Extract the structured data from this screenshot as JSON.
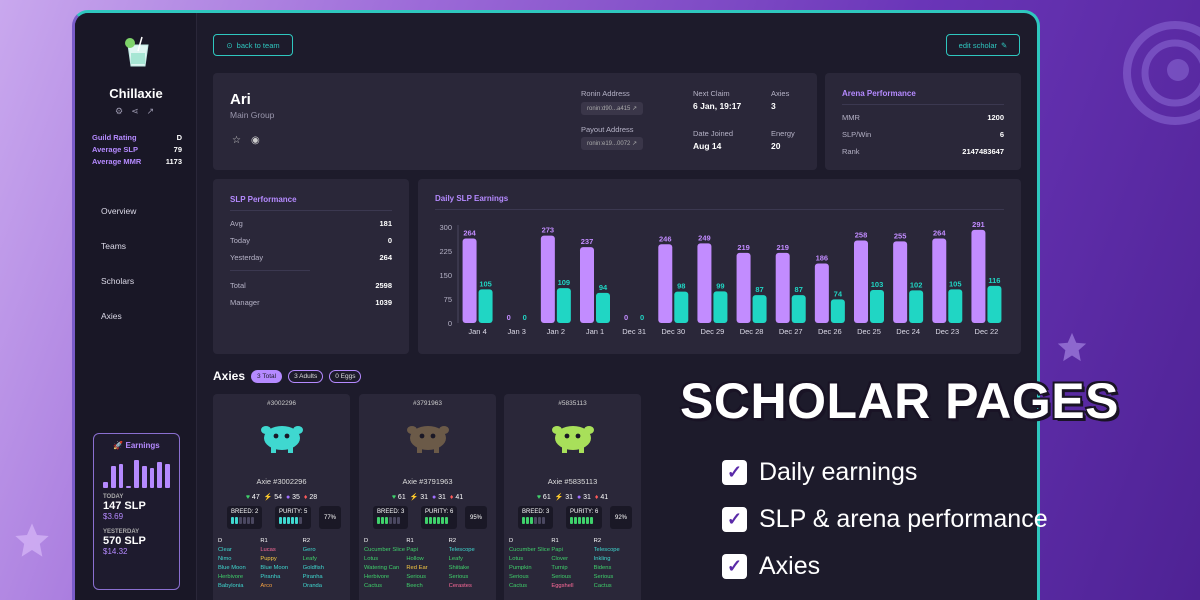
{
  "sidebar": {
    "guild_name": "Chillaxie",
    "stats": [
      {
        "label": "Guild Rating",
        "value": "D"
      },
      {
        "label": "Average SLP",
        "value": "79"
      },
      {
        "label": "Average MMR",
        "value": "1173"
      }
    ],
    "nav": [
      "Overview",
      "Teams",
      "Scholars",
      "Axies"
    ],
    "earnings": {
      "title": "Earnings",
      "today_label": "TODAY",
      "today_slp": "147 SLP",
      "today_usd": "$3.69",
      "yesterday_label": "YESTERDAY",
      "yesterday_slp": "570 SLP",
      "yesterday_usd": "$14.32",
      "mini_bars": [
        6,
        22,
        24,
        2,
        28,
        22,
        20,
        26,
        24
      ]
    }
  },
  "toolbar": {
    "back_label": "back to team",
    "edit_label": "edit scholar"
  },
  "profile": {
    "name": "Ari",
    "group": "Main Group",
    "ronin_label": "Ronin Address",
    "ronin_value": "ronin:d90...a415",
    "payout_label": "Payout Address",
    "payout_value": "ronin:e19...0072",
    "next_claim_label": "Next Claim",
    "next_claim_value": "6 Jan, 19:17",
    "date_joined_label": "Date Joined",
    "date_joined_value": "Aug 14",
    "axies_label": "Axies",
    "axies_value": "3",
    "energy_label": "Energy",
    "energy_value": "20"
  },
  "arena": {
    "title": "Arena Performance",
    "rows": [
      {
        "label": "MMR",
        "value": "1200"
      },
      {
        "label": "SLP/Win",
        "value": "6"
      },
      {
        "label": "Rank",
        "value": "2147483647"
      }
    ]
  },
  "slp_performance": {
    "title": "SLP Performance",
    "rows_top": [
      {
        "label": "Avg",
        "value": "181"
      },
      {
        "label": "Today",
        "value": "0"
      },
      {
        "label": "Yesterday",
        "value": "264"
      }
    ],
    "rows_bottom": [
      {
        "label": "Total",
        "value": "2598"
      },
      {
        "label": "Manager",
        "value": "1039"
      }
    ]
  },
  "chart_data": {
    "type": "bar",
    "title": "Daily SLP Earnings",
    "categories": [
      "Jan 4",
      "Jan 3",
      "Jan 2",
      "Jan 1",
      "Dec 31",
      "Dec 30",
      "Dec 29",
      "Dec 28",
      "Dec 27",
      "Dec 26",
      "Dec 25",
      "Dec 24",
      "Dec 23",
      "Dec 22"
    ],
    "series": [
      {
        "values": [
          264,
          0,
          273,
          237,
          0,
          246,
          249,
          219,
          219,
          186,
          258,
          255,
          264,
          291
        ],
        "color": "#c28cff"
      },
      {
        "values": [
          105,
          0,
          109,
          94,
          0,
          98,
          99,
          87,
          87,
          74,
          103,
          102,
          105,
          116
        ],
        "color": "#20d6c4"
      }
    ],
    "yticks": [
      0,
      75,
      150,
      225,
      300
    ],
    "ylim": [
      0,
      300
    ]
  },
  "axies": {
    "title": "Axies",
    "chips": [
      "3 Total",
      "3 Adults",
      "0 Eggs"
    ],
    "table_headers": [
      "D",
      "R1",
      "R2"
    ],
    "cards": [
      {
        "id": "#3002296",
        "name": "Axie #3002296",
        "color": "#3fd8d0",
        "hp": "47",
        "speed": "54",
        "skill": "35",
        "morale": "28",
        "breed": "BREED: 2",
        "purity": "PURITY: 5",
        "pct": "77%",
        "breed_count": 2,
        "purity_count": 5,
        "seg_color": "#3fd8d0",
        "rows": [
          [
            {
              "t": "Clear",
              "c": "#3fd8d0"
            },
            {
              "t": "Lucas",
              "c": "#ff6b9a"
            },
            {
              "t": "Gero",
              "c": "#3fd8d0"
            }
          ],
          [
            {
              "t": "Nimo",
              "c": "#3fd8d0"
            },
            {
              "t": "Puppy",
              "c": "#f5c842"
            },
            {
              "t": "Leafy",
              "c": "#3fd16b"
            }
          ],
          [
            {
              "t": "Blue Moon",
              "c": "#3fd8d0"
            },
            {
              "t": "Blue Moon",
              "c": "#3fd8d0"
            },
            {
              "t": "Goldfish",
              "c": "#3fd8d0"
            }
          ],
          [
            {
              "t": "Herbivore",
              "c": "#3fd16b"
            },
            {
              "t": "Piranha",
              "c": "#3fd8d0"
            },
            {
              "t": "Piranha",
              "c": "#3fd8d0"
            }
          ],
          [
            {
              "t": "Babylonia",
              "c": "#3fd8d0"
            },
            {
              "t": "Arco",
              "c": "#f5a142"
            },
            {
              "t": "Oranda",
              "c": "#3fd8d0"
            }
          ]
        ]
      },
      {
        "id": "#3791963",
        "name": "Axie #3791963",
        "color": "#6b5a48",
        "hp": "61",
        "speed": "31",
        "skill": "31",
        "morale": "41",
        "breed": "BREED: 3",
        "purity": "PURITY: 6",
        "pct": "95%",
        "breed_count": 3,
        "purity_count": 6,
        "seg_color": "#3fd16b",
        "rows": [
          [
            {
              "t": "Cucumber Slice",
              "c": "#3fd16b"
            },
            {
              "t": "Papi",
              "c": "#3fd16b"
            },
            {
              "t": "Telescope",
              "c": "#3fd8d0"
            }
          ],
          [
            {
              "t": "Lotus",
              "c": "#3fd16b"
            },
            {
              "t": "Hollow",
              "c": "#3fd16b"
            },
            {
              "t": "Leafy",
              "c": "#3fd16b"
            }
          ],
          [
            {
              "t": "Watering Can",
              "c": "#3fd16b"
            },
            {
              "t": "Red Ear",
              "c": "#f5c842"
            },
            {
              "t": "Shiitake",
              "c": "#3fd16b"
            }
          ],
          [
            {
              "t": "Herbivore",
              "c": "#3fd16b"
            },
            {
              "t": "Serious",
              "c": "#3fd16b"
            },
            {
              "t": "Serious",
              "c": "#3fd16b"
            }
          ],
          [
            {
              "t": "Cactus",
              "c": "#3fd16b"
            },
            {
              "t": "Beech",
              "c": "#3fd16b"
            },
            {
              "t": "Cerastes",
              "c": "#ff6b9a"
            }
          ]
        ]
      },
      {
        "id": "#5835113",
        "name": "Axie #5835113",
        "color": "#a8e05a",
        "hp": "61",
        "speed": "31",
        "skill": "31",
        "morale": "41",
        "breed": "BREED: 3",
        "purity": "PURITY: 6",
        "pct": "92%",
        "breed_count": 3,
        "purity_count": 6,
        "seg_color": "#3fd16b",
        "rows": [
          [
            {
              "t": "Cucumber Slice",
              "c": "#3fd16b"
            },
            {
              "t": "Papi",
              "c": "#3fd16b"
            },
            {
              "t": "Telescope",
              "c": "#3fd8d0"
            }
          ],
          [
            {
              "t": "Lotus",
              "c": "#3fd16b"
            },
            {
              "t": "Clover",
              "c": "#3fd16b"
            },
            {
              "t": "Inkling",
              "c": "#3fd8d0"
            }
          ],
          [
            {
              "t": "Pumpkin",
              "c": "#3fd16b"
            },
            {
              "t": "Turnip",
              "c": "#3fd16b"
            },
            {
              "t": "Bidens",
              "c": "#3fd16b"
            }
          ],
          [
            {
              "t": "Serious",
              "c": "#3fd16b"
            },
            {
              "t": "Serious",
              "c": "#3fd16b"
            },
            {
              "t": "Serious",
              "c": "#3fd16b"
            }
          ],
          [
            {
              "t": "Cactus",
              "c": "#3fd16b"
            },
            {
              "t": "Eggshell",
              "c": "#ff6b9a"
            },
            {
              "t": "Cactus",
              "c": "#3fd16b"
            }
          ]
        ]
      }
    ]
  },
  "promo": {
    "title": "SCHOLAR PAGES",
    "items": [
      "Daily earnings",
      "SLP & arena performance",
      "Axies"
    ]
  }
}
